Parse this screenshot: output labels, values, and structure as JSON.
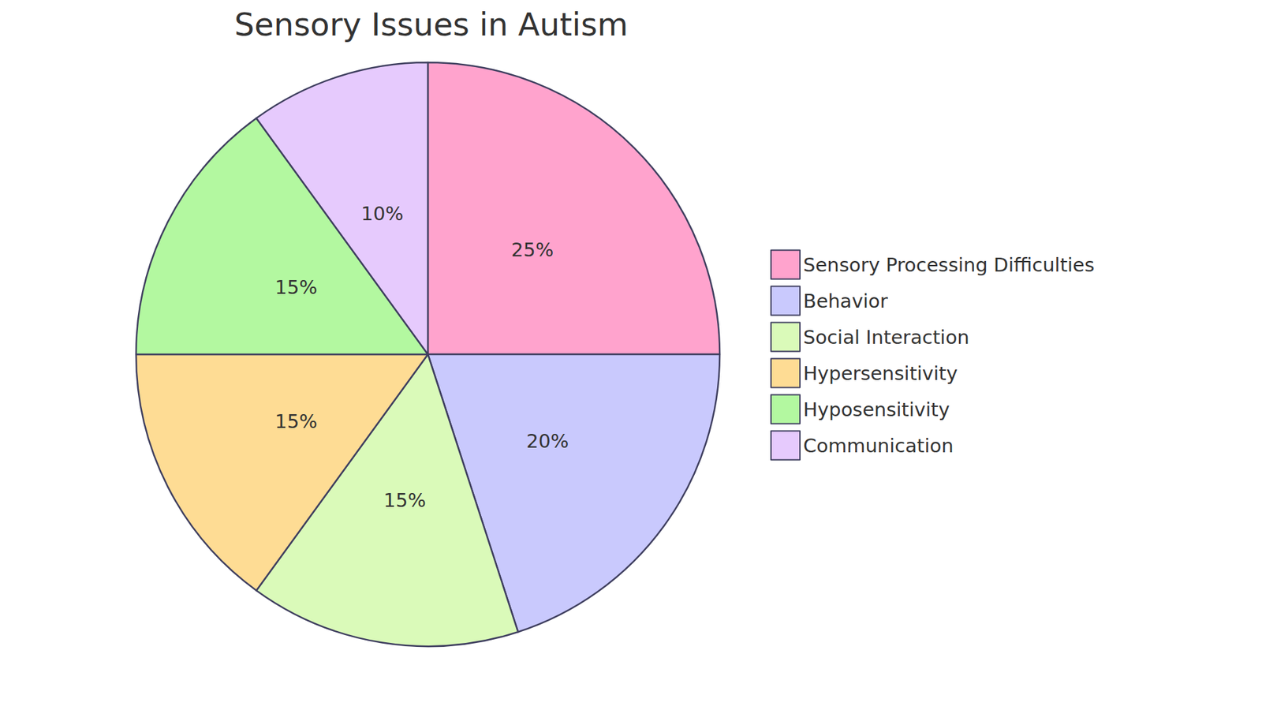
{
  "chart_data": {
    "type": "pie",
    "title": "Sensory Issues in Autism",
    "categories": [
      "Sensory Processing Difficulties",
      "Behavior",
      "Social Interaction",
      "Hypersensitivity",
      "Hyposensitivity",
      "Communication"
    ],
    "values": [
      25,
      20,
      15,
      15,
      15,
      10
    ],
    "value_labels": [
      "25%",
      "20%",
      "15%",
      "15%",
      "15%",
      "10%"
    ],
    "colors": [
      "#ffa3cd",
      "#c9c9fd",
      "#dafab9",
      "#fedc94",
      "#b3f8a0",
      "#e6cafd"
    ],
    "data_labels": true,
    "legend": "right"
  }
}
